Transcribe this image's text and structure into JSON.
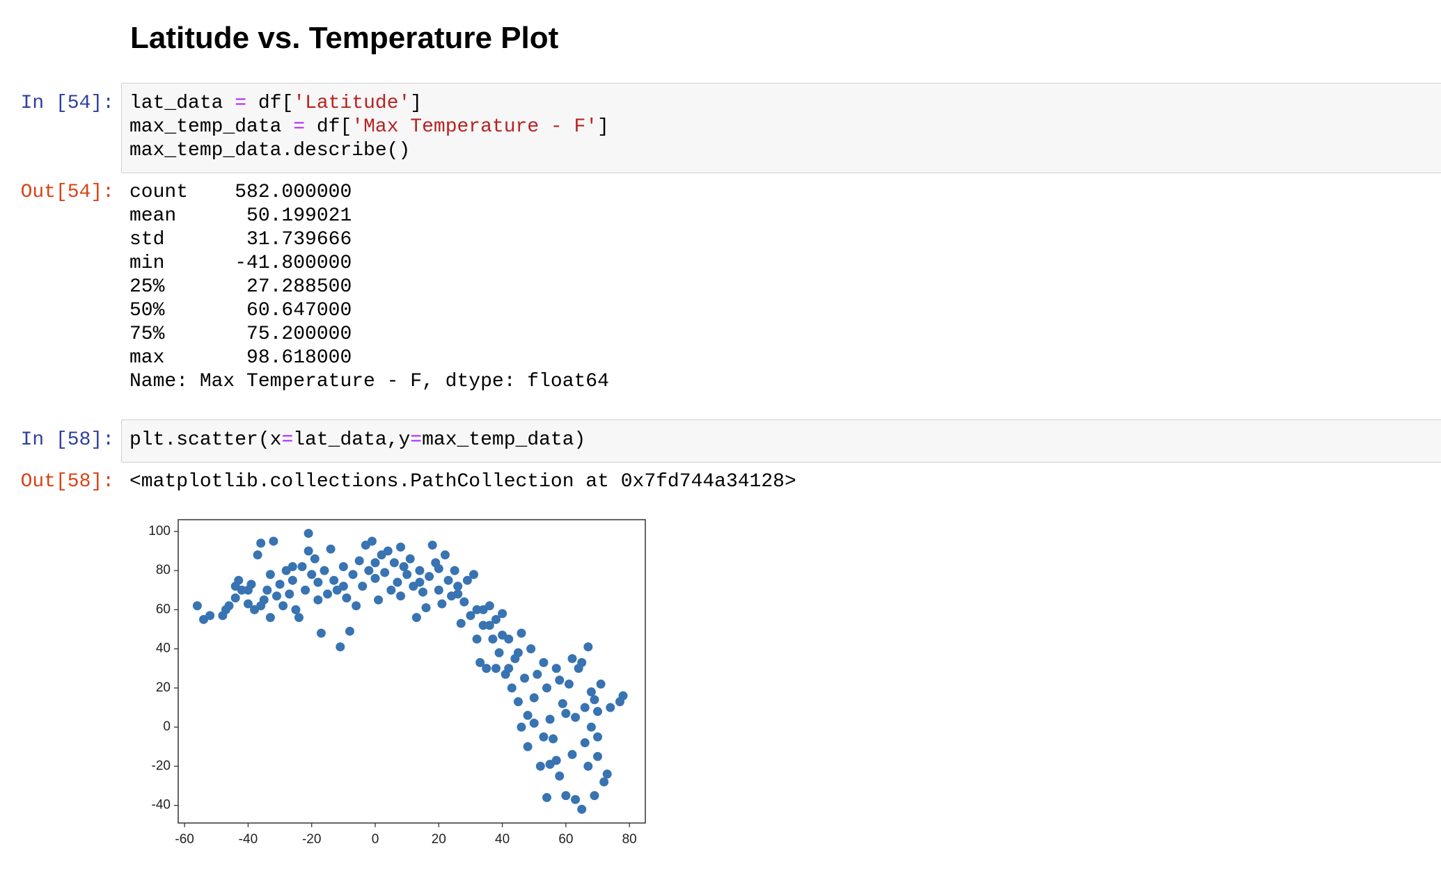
{
  "header": {
    "title": "Latitude vs. Temperature Plot"
  },
  "cells": [
    {
      "in_prompt": "In [54]:",
      "code": [
        "lat_data = df['Latitude']",
        "max_temp_data = df['Max Temperature - F']",
        "max_temp_data.describe()"
      ],
      "out_prompt": "Out[54]:",
      "output": [
        "count    582.000000",
        "mean      50.199021",
        "std       31.739666",
        "min      -41.800000",
        "25%       27.288500",
        "50%       60.647000",
        "75%       75.200000",
        "max       98.618000",
        "Name: Max Temperature - F, dtype: float64"
      ]
    },
    {
      "in_prompt": "In [58]:",
      "code": [
        "plt.scatter(x=lat_data,y=max_temp_data)"
      ],
      "out_prompt": "Out[58]:",
      "output": [
        "<matplotlib.collections.PathCollection at 0x7fd744a34128>"
      ]
    }
  ],
  "chart_data": {
    "type": "scatter",
    "xlim": [
      -62,
      85
    ],
    "ylim": [
      -49,
      106
    ],
    "xticks": [
      -60,
      -40,
      -20,
      0,
      20,
      40,
      60,
      80
    ],
    "yticks": [
      -40,
      -20,
      0,
      20,
      40,
      60,
      80,
      100
    ],
    "series": [
      {
        "color": "#3873b2",
        "x": [
          -56,
          -54,
          -52,
          -48,
          -47,
          -46,
          -44,
          -44,
          -43,
          -40,
          -40,
          -39,
          -38,
          -37,
          -36,
          -35,
          -34,
          -33,
          -33,
          -32,
          -31,
          -30,
          -29,
          -28,
          -27,
          -26,
          -25,
          -24,
          -23,
          -22,
          -21,
          -21,
          -20,
          -19,
          -18,
          -17,
          -16,
          -15,
          -14,
          -13,
          -12,
          -11,
          -10,
          -9,
          -8,
          -7,
          -6,
          -5,
          -4,
          -3,
          -2,
          -1,
          0,
          1,
          2,
          3,
          4,
          5,
          6,
          7,
          8,
          9,
          10,
          11,
          12,
          13,
          14,
          15,
          16,
          17,
          18,
          19,
          20,
          21,
          22,
          23,
          24,
          25,
          26,
          27,
          28,
          29,
          30,
          31,
          32,
          33,
          34,
          35,
          36,
          37,
          38,
          39,
          40,
          41,
          42,
          43,
          44,
          45,
          46,
          47,
          48,
          49,
          50,
          51,
          52,
          53,
          54,
          55,
          56,
          57,
          58,
          59,
          60,
          61,
          62,
          63,
          64,
          65,
          66,
          67,
          68,
          69,
          70,
          71,
          72,
          73,
          74,
          67,
          63,
          66,
          68,
          70,
          54,
          57,
          50,
          46,
          42,
          48,
          78,
          77,
          60,
          62,
          53,
          58,
          55,
          65,
          70,
          69,
          45,
          40,
          36,
          34,
          38,
          32,
          -42,
          -36,
          -26,
          -18,
          -10,
          0,
          8,
          14,
          20,
          26
        ],
        "values": [
          62,
          55,
          57,
          57,
          60,
          62,
          66,
          72,
          75,
          70,
          63,
          73,
          60,
          88,
          94,
          65,
          70,
          56,
          78,
          95,
          67,
          73,
          62,
          80,
          68,
          75,
          60,
          56,
          82,
          70,
          99,
          90,
          78,
          86,
          74,
          48,
          80,
          68,
          91,
          75,
          70,
          41,
          82,
          66,
          49,
          78,
          62,
          85,
          72,
          93,
          80,
          95,
          76,
          65,
          88,
          79,
          90,
          70,
          84,
          74,
          67,
          82,
          78,
          86,
          72,
          56,
          80,
          69,
          61,
          77,
          93,
          84,
          70,
          63,
          88,
          75,
          67,
          80,
          72,
          53,
          64,
          75,
          57,
          78,
          60,
          33,
          52,
          30,
          62,
          45,
          55,
          38,
          58,
          27,
          45,
          20,
          35,
          13,
          48,
          25,
          6,
          40,
          15,
          27,
          -20,
          33,
          20,
          4,
          -6,
          30,
          -25,
          12,
          -35,
          22,
          -14,
          5,
          30,
          -42,
          10,
          -20,
          18,
          -35,
          -5,
          22,
          -28,
          -24,
          10,
          41,
          -37,
          -8,
          0,
          -15,
          -36,
          -17,
          2,
          0,
          30,
          -10,
          16,
          13,
          7,
          35,
          -5,
          24,
          -19,
          33,
          8,
          14,
          38,
          47,
          52,
          60,
          30,
          45,
          70,
          62,
          82,
          65,
          72,
          84,
          92,
          74,
          81,
          68
        ]
      }
    ]
  }
}
